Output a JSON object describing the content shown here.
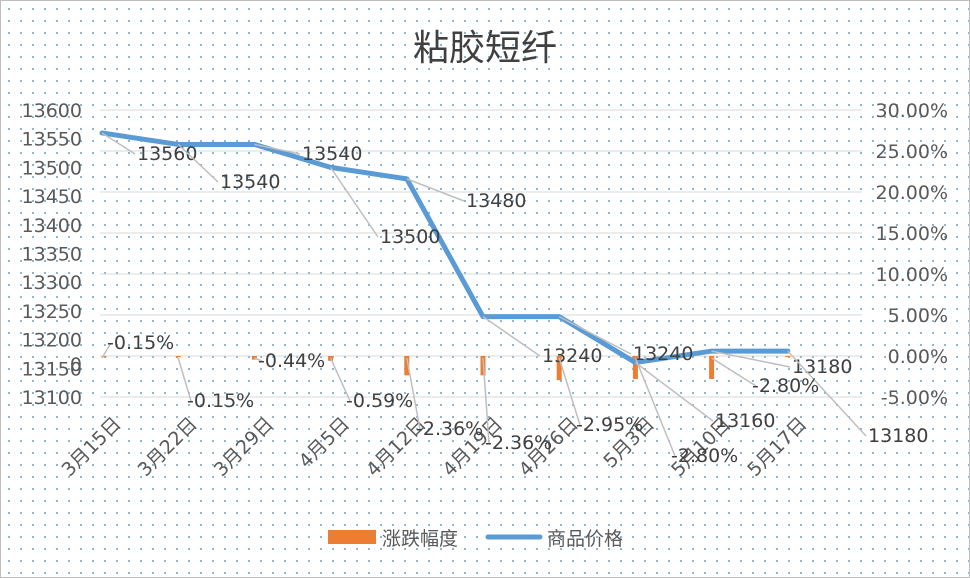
{
  "chart_data": {
    "type": "bar-line-combo",
    "title": "粘胶短纤",
    "categories": [
      "3月15日",
      "3月22日",
      "3月29日",
      "4月5日",
      "4月12日",
      "4月19日",
      "4月26日",
      "5月3日",
      "5月10日",
      "5月17日"
    ],
    "series": [
      {
        "name": "涨跌幅度",
        "type": "bar",
        "axis": "right",
        "values": [
          -0.15,
          -0.15,
          -0.44,
          -0.59,
          -2.36,
          -2.36,
          -2.95,
          -2.8,
          -2.8,
          0
        ],
        "labels": [
          "-0.15%",
          "-0.15%",
          "-0.44%",
          "-0.59%",
          "-2.36%",
          "-2.36%",
          "-2.95%",
          "-2.80%",
          "-2.80%",
          ""
        ],
        "color": "#ED7D31"
      },
      {
        "name": "商品价格",
        "type": "line",
        "axis": "left",
        "values": [
          13560,
          13540,
          13540,
          13500,
          13480,
          13240,
          13240,
          13160,
          13180,
          13180
        ],
        "labels": [
          "13560",
          "13540",
          "13540",
          "13500",
          "13480",
          "13240",
          "13240",
          "13160",
          "13180",
          "13180"
        ],
        "color": "#5B9BD5"
      }
    ],
    "y_left": {
      "min": 13100,
      "max": 13600,
      "step": 50,
      "extra_tick": "0"
    },
    "y_right": {
      "min": -5,
      "max": 30,
      "step": 5,
      "format": "percent2"
    },
    "y_left_ticks": [
      "13600",
      "13550",
      "13500",
      "13450",
      "13400",
      "13350",
      "13300",
      "13250",
      "13200",
      "13150",
      "13100"
    ],
    "y_right_ticks": [
      "30.00%",
      "25.00%",
      "20.00%",
      "15.00%",
      "10.00%",
      "5.00%",
      "0.00%",
      "-5.00%"
    ],
    "grid": true,
    "legend": "bottom"
  }
}
